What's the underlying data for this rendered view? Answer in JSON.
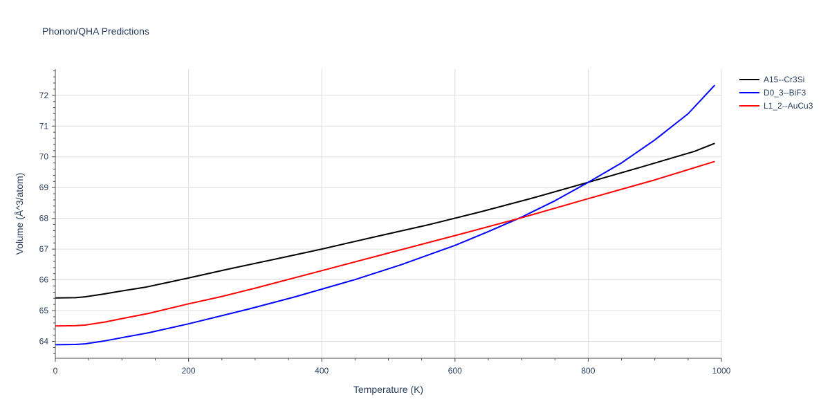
{
  "chart_data": {
    "type": "line",
    "title": "Phonon/QHA Predictions",
    "xlabel": "Temperature (K)",
    "ylabel": "Volume (Å^3/atom)",
    "xlim": [
      0,
      1000
    ],
    "ylim": [
      63.45,
      72.85
    ],
    "xticks": [
      0,
      200,
      400,
      600,
      800,
      1000
    ],
    "yticks": [
      64,
      65,
      66,
      67,
      68,
      69,
      70,
      71,
      72
    ],
    "grid": true,
    "legend_position": "top-right",
    "series": [
      {
        "name": "A15--Cr3Si",
        "color": "#000000",
        "x": [
          0,
          30,
          45,
          70,
          100,
          135,
          200,
          260,
          340,
          400,
          480,
          560,
          640,
          720,
          800,
          880,
          960,
          990
        ],
        "y": [
          65.41,
          65.42,
          65.45,
          65.53,
          65.64,
          65.76,
          66.06,
          66.35,
          66.72,
          67.0,
          67.4,
          67.79,
          68.22,
          68.68,
          69.17,
          69.67,
          70.18,
          70.44
        ]
      },
      {
        "name": "D0_3--BiF3",
        "color": "#0000ff",
        "x": [
          0,
          30,
          45,
          75,
          100,
          140,
          200,
          290,
          360,
          450,
          520,
          600,
          650,
          700,
          750,
          800,
          850,
          900,
          950,
          990
        ],
        "y": [
          63.89,
          63.9,
          63.92,
          64.02,
          64.12,
          64.28,
          64.57,
          65.05,
          65.45,
          66.01,
          66.5,
          67.12,
          67.57,
          68.04,
          68.57,
          69.17,
          69.8,
          70.55,
          71.4,
          72.33
        ]
      },
      {
        "name": "L1_2--AuCu3",
        "color": "#ff0000",
        "x": [
          0,
          30,
          45,
          75,
          100,
          140,
          200,
          250,
          300,
          400,
          500,
          600,
          700,
          800,
          900,
          990
        ],
        "y": [
          64.5,
          64.51,
          64.53,
          64.63,
          64.74,
          64.91,
          65.22,
          65.46,
          65.73,
          66.3,
          66.87,
          67.44,
          68.02,
          68.64,
          69.25,
          69.85
        ]
      }
    ]
  }
}
